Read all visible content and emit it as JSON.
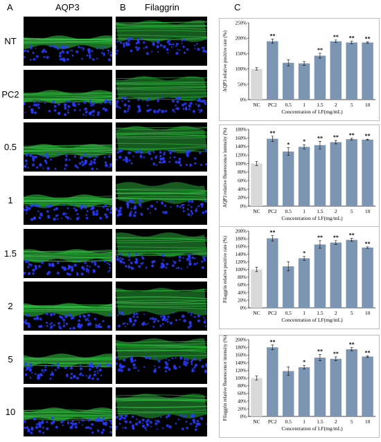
{
  "panels": {
    "a": "A",
    "b": "B",
    "c": "C"
  },
  "columns": {
    "a": "AQP3",
    "b": "Filaggrin"
  },
  "rows": [
    "NT",
    "PC2",
    "0.5",
    "1",
    "1.5",
    "2",
    "5",
    "10"
  ],
  "colors": {
    "control_bar": "#d9d9d9",
    "treated_bar": "#7b95b2",
    "green_stain": "#33c844",
    "blue_stain": "#2a3cff"
  },
  "chart_data": [
    {
      "type": "bar",
      "categories": [
        "NC",
        "PC2",
        "0.5",
        "1",
        "1.5",
        "2",
        "5",
        "10"
      ],
      "values": [
        100,
        190,
        120,
        118,
        143,
        190,
        186,
        186
      ],
      "errors": [
        4,
        7,
        10,
        6,
        8,
        4,
        4,
        2
      ],
      "significance": [
        "",
        "**",
        "",
        "",
        "**",
        "**",
        "**",
        "**"
      ],
      "ylabel": "AQP3 relative positive rate (%)",
      "xlabel": "Concentration of LF(mg/mL)",
      "ylim": [
        0,
        250
      ],
      "yticks": [
        "0%",
        "50%",
        "100%",
        "150%",
        "200%",
        "250%"
      ]
    },
    {
      "type": "bar",
      "categories": [
        "NC",
        "PC2",
        "0.5",
        "1",
        "1.5",
        "2",
        "5",
        "10"
      ],
      "values": [
        100,
        158,
        128,
        139,
        143,
        150,
        157,
        156
      ],
      "errors": [
        5,
        6,
        9,
        5,
        9,
        4,
        2,
        1
      ],
      "significance": [
        "",
        "**",
        "*",
        "*",
        "**",
        "**",
        "**",
        "**"
      ],
      "ylabel": "AQP3 relative fluorescence intensity (%)",
      "xlabel": "Concentration of LF(mg/mL)",
      "ylim": [
        0,
        180
      ],
      "yticks": [
        "0%",
        "20%",
        "40%",
        "60%",
        "80%",
        "100%",
        "120%",
        "140%",
        "160%",
        "180%"
      ]
    },
    {
      "type": "bar",
      "categories": [
        "NC",
        "PC2",
        "0.5",
        "1",
        "1.5",
        "2",
        "5",
        "10"
      ],
      "values": [
        100,
        181,
        108,
        129,
        165,
        170,
        177,
        157
      ],
      "errors": [
        6,
        7,
        12,
        5,
        10,
        5,
        4,
        2
      ],
      "significance": [
        "",
        "**",
        "",
        "*",
        "**",
        "**",
        "**",
        "**"
      ],
      "ylabel": "Filaggrin relative positive rate (%)",
      "xlabel": "Concentration of LF(mg/mL)",
      "ylim": [
        0,
        200
      ],
      "yticks": [
        "0%",
        "20%",
        "40%",
        "60%",
        "80%",
        "100%",
        "120%",
        "140%",
        "160%",
        "180%",
        "200%"
      ]
    },
    {
      "type": "bar",
      "categories": [
        "NC",
        "PC2",
        "0.5",
        "1",
        "1.5",
        "2",
        "5",
        "10"
      ],
      "values": [
        100,
        180,
        118,
        128,
        153,
        150,
        175,
        156
      ],
      "errors": [
        5,
        6,
        11,
        5,
        8,
        5,
        4,
        2
      ],
      "significance": [
        "",
        "**",
        "",
        "*",
        "**",
        "**",
        "**",
        "**"
      ],
      "ylabel": "Filaggrin relative fluorescence intensity (%)",
      "xlabel": "Concentration of LF(mg/mL)",
      "ylim": [
        0,
        200
      ],
      "yticks": [
        "0%",
        "20%",
        "40%",
        "60%",
        "80%",
        "100%",
        "120%",
        "140%",
        "160%",
        "180%",
        "200%"
      ]
    }
  ]
}
